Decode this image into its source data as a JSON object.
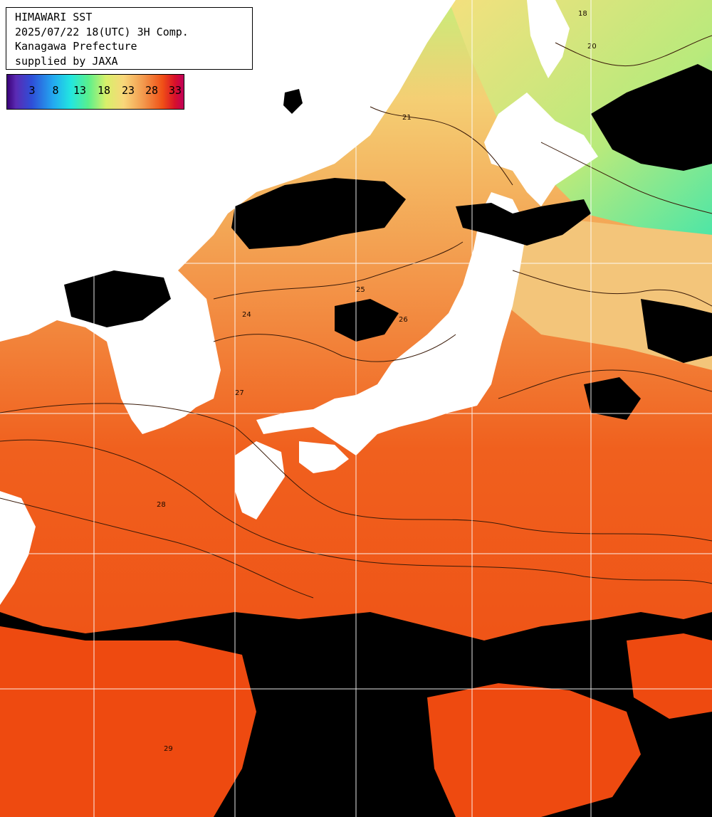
{
  "header": {
    "title_line1": "HIMAWARI SST",
    "title_line2": "2025/07/22 18(UTC) 3H Comp.",
    "title_line3": "Kanagawa Prefecture",
    "title_line4": "supplied by JAXA"
  },
  "legend": {
    "ticks": [
      "3",
      "8",
      "13",
      "18",
      "23",
      "28",
      "33"
    ],
    "colors": {
      "cold": "#3a0078",
      "cool": "#23a8f0",
      "mild": "#5af08c",
      "warm": "#f8d77a",
      "hot": "#f05016",
      "hottest": "#c0005a"
    }
  },
  "map": {
    "contour_labels": [
      "24",
      "25",
      "26",
      "27",
      "28",
      "29",
      "21",
      "20",
      "18"
    ],
    "colors": {
      "land": "#ffffff",
      "cloud_mask": "#000000",
      "sea_warm": "#f05a1a",
      "sea_mid": "#f59a52",
      "sea_cool": "#f2c878",
      "sea_cold": "#b6e879",
      "grid": "#ffffff"
    }
  }
}
